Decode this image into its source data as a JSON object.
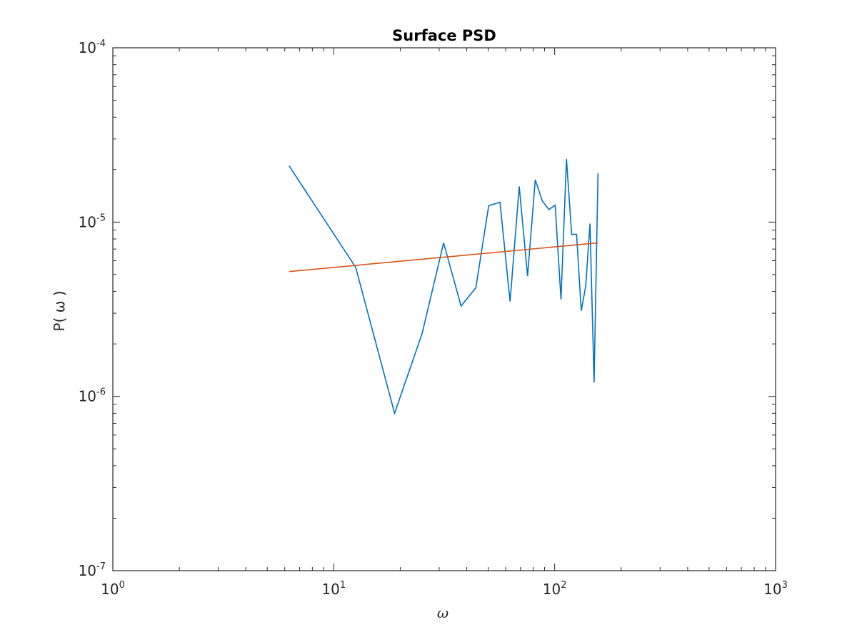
{
  "chart_data": {
    "type": "line",
    "title": "Surface PSD",
    "xlabel": "ω",
    "ylabel": "P( ω )",
    "x_scale": "log",
    "y_scale": "log",
    "xlim": [
      1,
      1000
    ],
    "ylim": [
      1e-07,
      0.0001
    ],
    "grid": false,
    "box": true,
    "x_ticks": [
      {
        "base": "10",
        "exp": "0",
        "value": 1
      },
      {
        "base": "10",
        "exp": "1",
        "value": 10
      },
      {
        "base": "10",
        "exp": "2",
        "value": 100
      },
      {
        "base": "10",
        "exp": "3",
        "value": 1000
      }
    ],
    "y_ticks": [
      {
        "base": "10",
        "exp": "-7",
        "value": 1e-07
      },
      {
        "base": "10",
        "exp": "-6",
        "value": 1e-06
      },
      {
        "base": "10",
        "exp": "-5",
        "value": 1e-05
      },
      {
        "base": "10",
        "exp": "-4",
        "value": 0.0001
      }
    ],
    "series": [
      {
        "color": "#0072BD",
        "x": [
          6.28,
          12.57,
          18.85,
          25.13,
          31.42,
          37.7,
          43.98,
          50.27,
          56.55,
          62.83,
          69.12,
          75.4,
          81.68,
          87.96,
          94.25,
          100.53,
          106.81,
          113.1,
          119.38,
          125.66,
          131.95,
          138.23,
          144.51,
          150.8,
          157.08
        ],
        "y": [
          2.1e-05,
          5.5e-06,
          8e-07,
          2.3e-06,
          7.6e-06,
          3.3e-06,
          4.2e-06,
          1.24e-05,
          1.3e-05,
          3.5e-06,
          1.6e-05,
          4.9e-06,
          1.75e-05,
          1.32e-05,
          1.18e-05,
          1.25e-05,
          3.6e-06,
          2.3e-05,
          8.5e-06,
          8.5e-06,
          3.1e-06,
          4.3e-06,
          9.8e-06,
          1.2e-06,
          1.9e-05
        ]
      },
      {
        "color": "#D95319",
        "x": [
          6.28,
          157.08
        ],
        "y": [
          5.2e-06,
          7.6e-06
        ]
      }
    ]
  }
}
